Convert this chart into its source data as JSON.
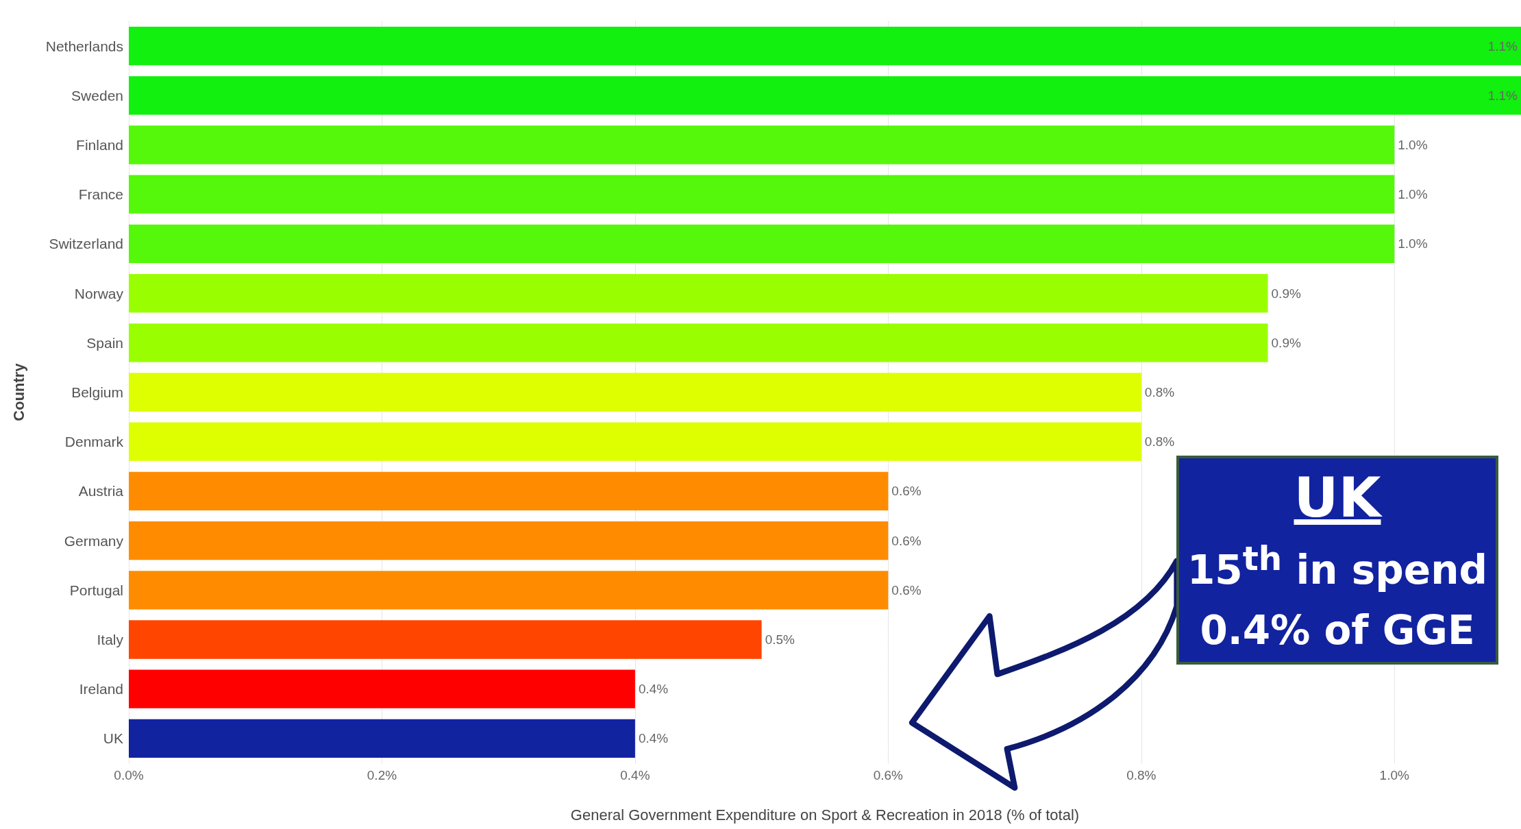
{
  "chart_data": {
    "type": "bar",
    "orientation": "horizontal",
    "xlabel": "General Government Expenditure on Sport & Recreation in 2018 (% of total)",
    "ylabel": "Country",
    "categories": [
      "Netherlands",
      "Sweden",
      "Finland",
      "France",
      "Switzerland",
      "Norway",
      "Spain",
      "Belgium",
      "Denmark",
      "Austria",
      "Germany",
      "Portugal",
      "Italy",
      "Ireland",
      "UK"
    ],
    "values": [
      1.1,
      1.1,
      1.0,
      1.0,
      1.0,
      0.9,
      0.9,
      0.8,
      0.8,
      0.6,
      0.6,
      0.6,
      0.5,
      0.4,
      0.4
    ],
    "value_labels": [
      "1.1%",
      "1.1%",
      "1.0%",
      "1.0%",
      "1.0%",
      "0.9%",
      "0.9%",
      "0.8%",
      "0.8%",
      "0.6%",
      "0.6%",
      "0.6%",
      "0.5%",
      "0.4%",
      "0.4%"
    ],
    "colors": [
      "#11f00e",
      "#11f00e",
      "#55f80a",
      "#55f80a",
      "#55f80a",
      "#99ff00",
      "#99ff00",
      "#ddff00",
      "#ddff00",
      "#ff8c00",
      "#ff8c00",
      "#ff8c00",
      "#ff4500",
      "#ff0000",
      "#1223a0"
    ],
    "xlim": [
      0,
      1.1
    ],
    "xticks": [
      {
        "value": 0,
        "label": "0.0%"
      },
      {
        "value": 0.2,
        "label": "0.2%"
      },
      {
        "value": 0.4,
        "label": "0.4%"
      },
      {
        "value": 0.6,
        "label": "0.6%"
      },
      {
        "value": 0.8,
        "label": "0.8%"
      },
      {
        "value": 1.0,
        "label": "1.0%"
      }
    ],
    "grid": "x",
    "annotations": [
      "UK\n15$^{th}$ in spend\n0.4% of GGE"
    ]
  }
}
